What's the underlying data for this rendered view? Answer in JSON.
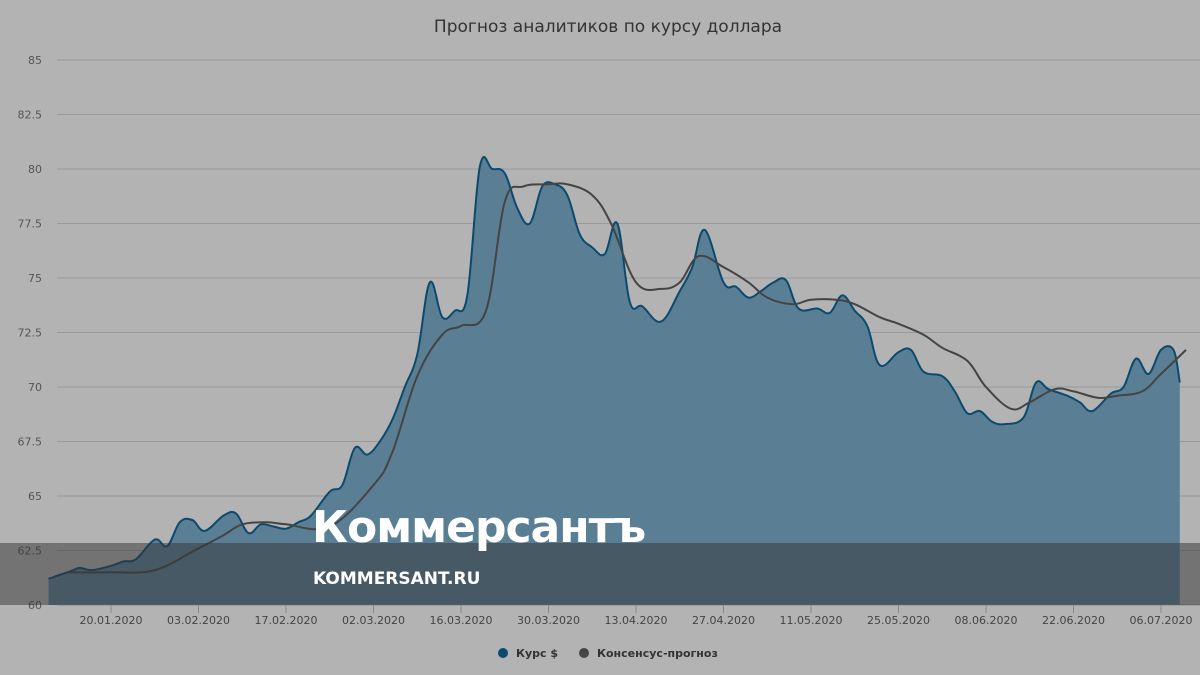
{
  "chart_data": {
    "type": "area",
    "title": "Прогноз аналитиков по курсу доллара",
    "ylim": [
      60,
      85
    ],
    "yticks": [
      "60",
      "62.5",
      "65",
      "67.5",
      "70",
      "72.5",
      "75",
      "77.5",
      "80",
      "82.5",
      "85"
    ],
    "xticks": [
      "20.01.2020",
      "03.02.2020",
      "17.02.2020",
      "02.03.2020",
      "16.03.2020",
      "30.03.2020",
      "13.04.2020",
      "27.04.2020",
      "11.05.2020",
      "25.05.2020",
      "08.06.2020",
      "22.06.2020",
      "06.07.2020"
    ],
    "grid": true,
    "legend_placement": "bottom-center",
    "series": [
      {
        "name": "Курс $",
        "kind": "area",
        "color": "#0b4a6f",
        "fill": "#5a7f95",
        "x": [
          "2020-01-10",
          "2020-01-12",
          "2020-01-14",
          "2020-01-15",
          "2020-01-17",
          "2020-01-20",
          "2020-01-22",
          "2020-01-24",
          "2020-01-27",
          "2020-01-29",
          "2020-01-31",
          "2020-02-02",
          "2020-02-04",
          "2020-02-07",
          "2020-02-09",
          "2020-02-11",
          "2020-02-13",
          "2020-02-15",
          "2020-02-17",
          "2020-02-19",
          "2020-02-21",
          "2020-02-24",
          "2020-02-26",
          "2020-02-28",
          "2020-03-01",
          "2020-03-03",
          "2020-03-05",
          "2020-03-07",
          "2020-03-09",
          "2020-03-11",
          "2020-03-13",
          "2020-03-15",
          "2020-03-17",
          "2020-03-19",
          "2020-03-21",
          "2020-03-23",
          "2020-03-25",
          "2020-03-27",
          "2020-03-29",
          "2020-03-31",
          "2020-04-02",
          "2020-04-04",
          "2020-04-06",
          "2020-04-08",
          "2020-04-10",
          "2020-04-12",
          "2020-04-14",
          "2020-04-17",
          "2020-04-20",
          "2020-04-22",
          "2020-04-24",
          "2020-04-27",
          "2020-04-29",
          "2020-05-01",
          "2020-05-03",
          "2020-05-05",
          "2020-05-07",
          "2020-05-09",
          "2020-05-12",
          "2020-05-14",
          "2020-05-16",
          "2020-05-18",
          "2020-05-20",
          "2020-05-22",
          "2020-05-25",
          "2020-05-27",
          "2020-05-29",
          "2020-06-01",
          "2020-06-03",
          "2020-06-05",
          "2020-06-07",
          "2020-06-09",
          "2020-06-11",
          "2020-06-14",
          "2020-06-16",
          "2020-06-18",
          "2020-06-21",
          "2020-06-23",
          "2020-06-25",
          "2020-06-28",
          "2020-06-30",
          "2020-07-02",
          "2020-07-04",
          "2020-07-06",
          "2020-07-08",
          "2020-07-09"
        ],
        "values": [
          61.2,
          61.4,
          61.6,
          61.7,
          61.6,
          61.8,
          62.0,
          62.1,
          63.0,
          62.7,
          63.8,
          63.9,
          63.4,
          64.1,
          64.2,
          63.3,
          63.7,
          63.6,
          63.5,
          63.8,
          64.1,
          65.2,
          65.5,
          67.2,
          66.9,
          67.5,
          68.5,
          70.0,
          71.5,
          74.8,
          73.2,
          73.5,
          74.2,
          80.1,
          80.0,
          79.8,
          78.2,
          77.5,
          79.2,
          79.3,
          78.8,
          77.0,
          76.4,
          76.1,
          77.5,
          73.9,
          73.7,
          73.0,
          74.4,
          75.5,
          77.2,
          74.8,
          74.6,
          74.1,
          74.4,
          74.8,
          74.9,
          73.6,
          73.6,
          73.4,
          74.2,
          73.5,
          72.8,
          71.0,
          71.6,
          71.7,
          70.7,
          70.5,
          69.8,
          68.8,
          68.9,
          68.4,
          68.3,
          68.6,
          70.2,
          69.9,
          69.6,
          69.3,
          68.9,
          69.7,
          70.0,
          71.3,
          70.6,
          71.7,
          71.7,
          70.2
        ]
      },
      {
        "name": "Консенсус-прогноз",
        "kind": "line",
        "color": "#444444",
        "x": [
          "2020-01-13",
          "2020-01-20",
          "2020-01-27",
          "2020-02-03",
          "2020-02-07",
          "2020-02-10",
          "2020-02-14",
          "2020-02-17",
          "2020-02-24",
          "2020-03-02",
          "2020-03-05",
          "2020-03-09",
          "2020-03-13",
          "2020-03-16",
          "2020-03-20",
          "2020-03-23",
          "2020-03-26",
          "2020-03-30",
          "2020-04-02",
          "2020-04-06",
          "2020-04-09",
          "2020-04-13",
          "2020-04-17",
          "2020-04-20",
          "2020-04-23",
          "2020-04-27",
          "2020-05-01",
          "2020-05-04",
          "2020-05-08",
          "2020-05-11",
          "2020-05-15",
          "2020-05-18",
          "2020-05-22",
          "2020-05-25",
          "2020-05-29",
          "2020-06-01",
          "2020-06-05",
          "2020-06-08",
          "2020-06-12",
          "2020-06-15",
          "2020-06-19",
          "2020-06-22",
          "2020-06-26",
          "2020-06-29",
          "2020-07-03",
          "2020-07-06",
          "2020-07-10"
        ],
        "values": [
          61.5,
          61.5,
          61.6,
          62.6,
          63.2,
          63.7,
          63.8,
          63.7,
          63.6,
          65.5,
          67.0,
          70.5,
          72.4,
          72.8,
          73.5,
          78.5,
          79.2,
          79.3,
          79.3,
          78.8,
          77.5,
          74.8,
          74.5,
          74.8,
          76.0,
          75.5,
          74.8,
          74.1,
          73.8,
          74.0,
          74.0,
          73.8,
          73.2,
          72.9,
          72.4,
          71.8,
          71.2,
          70.0,
          69.0,
          69.3,
          69.9,
          69.8,
          69.5,
          69.6,
          69.8,
          70.6,
          71.7
        ]
      }
    ]
  },
  "watermark": {
    "brand": "Коммерсантъ",
    "site": "KOMMERSANT.RU"
  },
  "legend": {
    "items": [
      "Курс $",
      "Консенсус-прогноз"
    ],
    "colors": [
      "#0b4a6f",
      "#444444"
    ]
  }
}
